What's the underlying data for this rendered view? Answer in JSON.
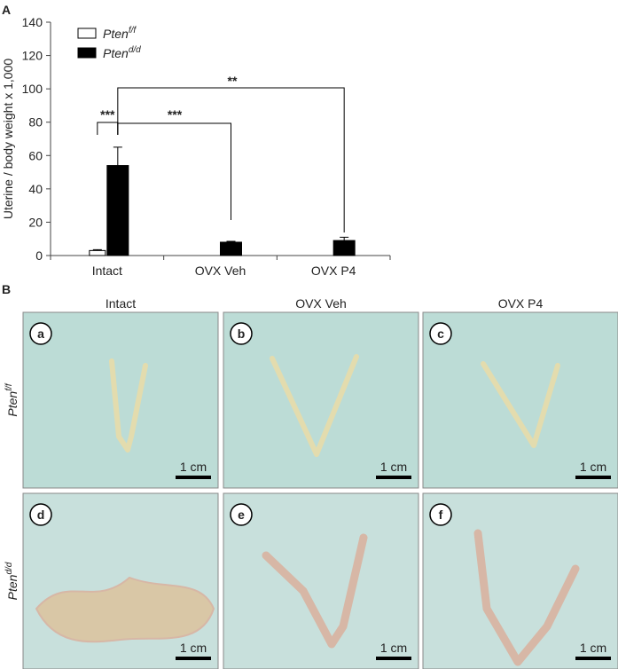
{
  "panel_a": {
    "label": "A"
  },
  "chart_data": {
    "type": "bar",
    "y_label": "Uterine / body weight x 1,000",
    "categories": [
      "Intact",
      "OVX Veh",
      "OVX P4"
    ],
    "series": [
      {
        "name": {
          "base": "Pten",
          "sup": "f/f"
        },
        "color": "#ffffff",
        "values": [
          3,
          null,
          null
        ],
        "errors": [
          0.5,
          null,
          null
        ]
      },
      {
        "name": {
          "base": "Pten",
          "sup": "d/d"
        },
        "color": "#000000",
        "values": [
          54,
          8,
          9
        ],
        "errors": [
          11,
          0.5,
          2
        ]
      }
    ],
    "ylim": [
      0,
      140
    ],
    "yticks": [
      0,
      20,
      40,
      60,
      80,
      100,
      120,
      140
    ],
    "legend": "upper left",
    "annotations": [
      "***",
      "***",
      "**"
    ]
  },
  "panel_b": {
    "label": "B",
    "columns": [
      "Intact",
      "OVX Veh",
      "OVX P4"
    ],
    "rows": [
      {
        "base": "Pten",
        "sup": "f/f"
      },
      {
        "base": "Pten",
        "sup": "d/d"
      }
    ],
    "panels": [
      "a",
      "b",
      "c",
      "d",
      "e",
      "f"
    ],
    "scale_bar": "1 cm"
  }
}
